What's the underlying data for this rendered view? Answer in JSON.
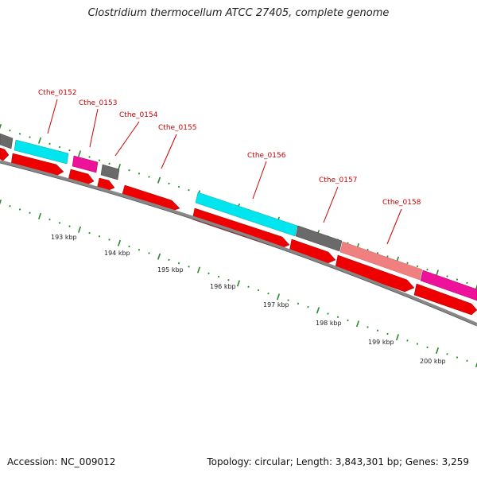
{
  "title": "Clostridium thermocellum ATCC 27405, complete genome",
  "footer": {
    "accession_label": "Accession: NC_009012",
    "info": "Topology: circular; Length: 3,843,301 bp; Genes: 3,259"
  },
  "colors": {
    "cds": "#ee0000",
    "backbone": "#888888",
    "tick": "#2a8a2a",
    "label": "#cc0000"
  },
  "gene_labels": [
    "Cthe_0152",
    "Cthe_0153",
    "Cthe_0154",
    "Cthe_0155",
    "Cthe_0156",
    "Cthe_0157",
    "Cthe_0158"
  ],
  "kbp_labels": [
    "193 kbp",
    "194 kbp",
    "195 kbp",
    "196 kbp",
    "197 kbp",
    "198 kbp",
    "199 kbp",
    "200 kbp"
  ]
}
